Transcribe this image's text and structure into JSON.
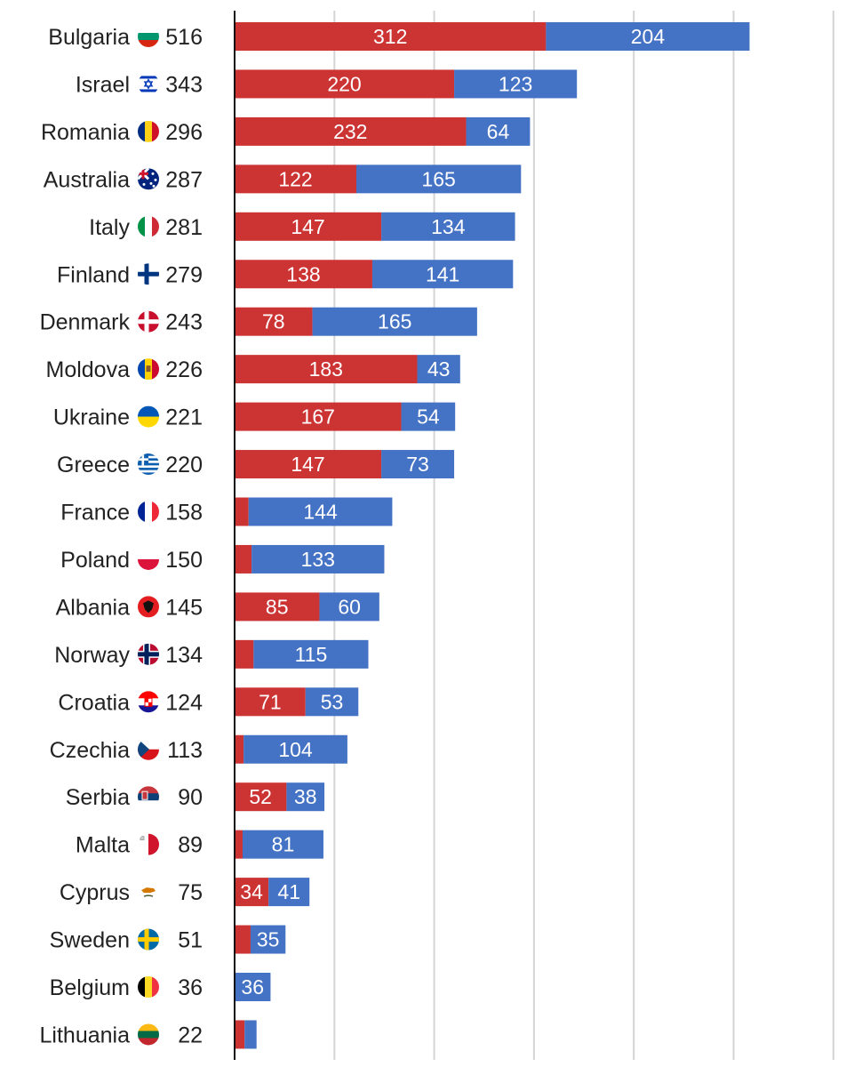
{
  "chart_data": {
    "type": "bar",
    "orientation": "horizontal",
    "stacked": true,
    "title": "",
    "xlabel": "",
    "ylabel": "",
    "xlim": [
      0,
      600
    ],
    "grid": true,
    "legend": "none",
    "colors": {
      "first": "#cc3333",
      "second": "#4472c4"
    },
    "categories": [
      "Bulgaria",
      "Israel",
      "Romania",
      "Australia",
      "Italy",
      "Finland",
      "Denmark",
      "Moldova",
      "Ukraine",
      "Greece",
      "France",
      "Poland",
      "Albania",
      "Norway",
      "Croatia",
      "Czechia",
      "Serbia",
      "Malta",
      "Cyprus",
      "Sweden",
      "Belgium",
      "Lithuania"
    ],
    "flags": [
      "bulgaria-flag-icon",
      "israel-flag-icon",
      "romania-flag-icon",
      "australia-flag-icon",
      "italy-flag-icon",
      "finland-flag-icon",
      "denmark-flag-icon",
      "moldova-flag-icon",
      "ukraine-flag-icon",
      "greece-flag-icon",
      "france-flag-icon",
      "poland-flag-icon",
      "albania-flag-icon",
      "norway-flag-icon",
      "croatia-flag-icon",
      "czechia-flag-icon",
      "serbia-flag-icon",
      "malta-flag-icon",
      "cyprus-flag-icon",
      "sweden-flag-icon",
      "belgium-flag-icon",
      "lithuania-flag-icon"
    ],
    "totals": [
      516,
      343,
      296,
      287,
      281,
      279,
      243,
      226,
      221,
      220,
      158,
      150,
      145,
      134,
      124,
      113,
      90,
      89,
      75,
      51,
      36,
      22
    ],
    "series": [
      {
        "values": [
          312,
          220,
          232,
          122,
          147,
          138,
          78,
          183,
          167,
          147,
          14,
          17,
          85,
          19,
          71,
          9,
          52,
          8,
          34,
          16,
          0,
          10
        ]
      },
      {
        "values": [
          204,
          123,
          64,
          165,
          134,
          141,
          165,
          43,
          54,
          73,
          144,
          133,
          60,
          115,
          53,
          104,
          38,
          81,
          41,
          35,
          36,
          12
        ]
      }
    ],
    "value_labels": [
      [
        "312",
        "220",
        "232",
        "122",
        "147",
        "138",
        "78",
        "183",
        "167",
        "147",
        "",
        "",
        "85",
        "",
        "71",
        "",
        "52",
        "",
        "34",
        "",
        "",
        ""
      ],
      [
        "204",
        "123",
        "64",
        "165",
        "134",
        "141",
        "165",
        "43",
        "54",
        "73",
        "144",
        "133",
        "60",
        "115",
        "53",
        "104",
        "38",
        "81",
        "41",
        "35",
        "36",
        ""
      ]
    ]
  }
}
